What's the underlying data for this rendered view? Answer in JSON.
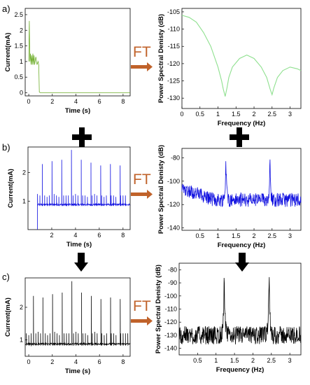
{
  "colors": {
    "row_a": "#6fae2c",
    "row_a_right": "#8fe08f",
    "row_b": "#1010e0",
    "row_c": "#000000",
    "ft_arrow": "#c0622a",
    "operator": "#000000"
  },
  "operators": {
    "ft_label": "FT",
    "plus": "plus",
    "down_arrow": "down-arrow"
  },
  "chart_data": [
    {
      "type": "line",
      "panel": "a)",
      "xlabel": "Time (s)",
      "ylabel": "Current(mA)",
      "xlim": [
        -0.3,
        8.6
      ],
      "ylim": [
        -0.1,
        2.7
      ],
      "xticks": [
        0,
        2,
        4,
        6,
        8
      ],
      "yticks": [
        0,
        0.5,
        1,
        1.5,
        2,
        2.5
      ],
      "series": [
        {
          "x": [
            0,
            0.05,
            0.1,
            0.15,
            0.2,
            0.25,
            0.3,
            0.35,
            0.4,
            0.45,
            0.5,
            0.6,
            0.7,
            0.8,
            0.85,
            0.9,
            1.0,
            4.0,
            8.6
          ],
          "y": [
            1.0,
            2.3,
            1.0,
            1.25,
            0.9,
            1.2,
            0.9,
            1.25,
            0.9,
            1.2,
            0.9,
            1.15,
            0.9,
            1.0,
            0.88,
            0.02,
            0.0,
            0.0,
            0.0
          ]
        }
      ]
    },
    {
      "type": "line",
      "panel": "a)",
      "xlabel": "Frequency (Hz)",
      "ylabel": "Power Spectral Denisty (dB)",
      "xlim": [
        0,
        3.3
      ],
      "ylim": [
        -133,
        -104
      ],
      "xticks": [
        0,
        0.5,
        1,
        1.5,
        2,
        2.5,
        3
      ],
      "yticks": [
        -105,
        -110,
        -115,
        -120,
        -125,
        -130
      ],
      "series": [
        {
          "x": [
            0,
            0.2,
            0.4,
            0.6,
            0.8,
            1.0,
            1.1,
            1.15,
            1.2,
            1.25,
            1.3,
            1.4,
            1.6,
            1.8,
            2.0,
            2.2,
            2.35,
            2.45,
            2.5,
            2.55,
            2.65,
            2.8,
            3.0,
            3.2,
            3.3
          ],
          "y": [
            -106,
            -106.6,
            -108,
            -111,
            -115,
            -121,
            -125,
            -127.5,
            -129.5,
            -127,
            -124,
            -121,
            -118.5,
            -117.5,
            -118.5,
            -121,
            -124,
            -127.5,
            -129,
            -127,
            -124,
            -122,
            -121,
            -121.5,
            -122
          ]
        }
      ]
    },
    {
      "type": "line",
      "panel": "b)",
      "xlabel": "Time (s)",
      "ylabel": "Current(mA)",
      "xlim": [
        0,
        8.6
      ],
      "ylim": [
        0,
        2.9
      ],
      "xticks": [
        2,
        4,
        6,
        8
      ],
      "yticks": [
        1,
        2
      ],
      "baseline": 0.88,
      "start": 0.8,
      "noise": 0.06,
      "peaks_x": [
        1.2,
        2.02,
        2.84,
        3.66,
        4.48,
        5.3,
        6.12,
        6.94,
        7.76,
        8.58
      ],
      "peaks_y": [
        2.3,
        2.4,
        2.45,
        2.8,
        2.45,
        2.35,
        2.25,
        2.3,
        2.25,
        2.3
      ],
      "minor_x": [
        0.8,
        1.0,
        1.4,
        1.6,
        1.8,
        2.2,
        2.4,
        2.6,
        3.0,
        3.2,
        3.4,
        3.8,
        4.0,
        4.2,
        4.6,
        4.8,
        5.0,
        5.4,
        5.6,
        5.8,
        6.2,
        6.4,
        6.6,
        7.0,
        7.2,
        7.4,
        7.8,
        8.0,
        8.2
      ],
      "minor_y": [
        1.25,
        1.2,
        1.2,
        1.15,
        1.2,
        1.25,
        1.2,
        1.15,
        1.2,
        1.2,
        1.2,
        1.2,
        1.25,
        1.2,
        1.2,
        1.2,
        1.15,
        1.2,
        1.25,
        1.2,
        1.2,
        1.15,
        1.2,
        1.2,
        1.2,
        1.15,
        1.2,
        1.2,
        1.2
      ]
    },
    {
      "type": "line",
      "panel": "b)",
      "xlabel": "Frequency (Hz)",
      "ylabel": "Power Spectral Denisty (dB)",
      "xlim": [
        0,
        3.3
      ],
      "ylim": [
        -142,
        -72
      ],
      "xticks": [
        0.5,
        1,
        1.5,
        2,
        2.5,
        3
      ],
      "yticks": [
        -80,
        -100,
        -120,
        -140
      ],
      "baseline": -116,
      "start_level": -106,
      "noise": 6,
      "peaks_x": [
        1.22,
        2.44
      ],
      "peaks_y": [
        -79,
        -79
      ]
    },
    {
      "type": "line",
      "panel": "c)",
      "xlabel": "Time (s)",
      "ylabel": "Current(mA)",
      "xlim": [
        -0.3,
        8.6
      ],
      "ylim": [
        0.5,
        2.9
      ],
      "xticks": [
        0,
        2,
        4,
        6,
        8
      ],
      "yticks": [
        1,
        2
      ],
      "baseline": 0.88,
      "start": -0.3,
      "noise": 0.05,
      "peaks_x": [
        0.4,
        1.2,
        2.02,
        2.84,
        3.66,
        4.48,
        5.3,
        6.12,
        6.94,
        7.76
      ],
      "peaks_y": [
        2.35,
        2.3,
        2.4,
        2.45,
        2.8,
        2.45,
        2.35,
        2.25,
        2.3,
        2.25
      ],
      "minor_x": [
        -0.2,
        0.0,
        0.2,
        0.6,
        0.8,
        1.0,
        1.4,
        1.6,
        1.8,
        2.2,
        2.4,
        2.6,
        3.0,
        3.2,
        3.4,
        3.8,
        4.0,
        4.2,
        4.6,
        4.8,
        5.0,
        5.4,
        5.6,
        5.8,
        6.2,
        6.4,
        6.6,
        7.0,
        7.2,
        7.4,
        7.8,
        8.0,
        8.2,
        8.4
      ],
      "minor_y": [
        1.2,
        1.15,
        1.2,
        1.2,
        1.25,
        1.2,
        1.2,
        1.15,
        1.2,
        1.25,
        1.2,
        1.15,
        1.2,
        1.2,
        1.2,
        1.2,
        1.25,
        1.2,
        1.2,
        1.2,
        1.15,
        1.2,
        1.25,
        1.2,
        1.2,
        1.15,
        1.2,
        1.2,
        1.2,
        1.15,
        1.2,
        1.2,
        1.2,
        1.2
      ]
    },
    {
      "type": "line",
      "panel": "c)",
      "xlabel": "Frequency (Hz)",
      "ylabel": "Power Spectral Denisty (dB)",
      "xlim": [
        0,
        3.3
      ],
      "ylim": [
        -145,
        -75
      ],
      "xticks": [
        0.5,
        1,
        1.5,
        2,
        2.5,
        3
      ],
      "yticks": [
        -80,
        -90,
        -100,
        -110,
        -120,
        -130,
        -140
      ],
      "baseline": -130,
      "start_level": -130,
      "noise": 7,
      "peaks_x": [
        1.22,
        2.44
      ],
      "peaks_y": [
        -79,
        -78
      ]
    }
  ]
}
